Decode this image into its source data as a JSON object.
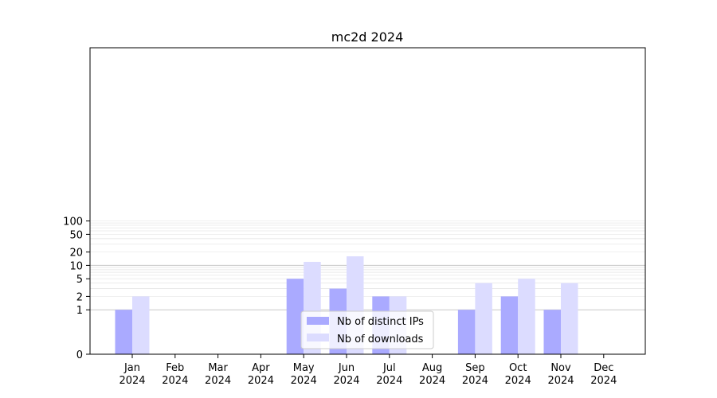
{
  "chart_data": {
    "type": "bar",
    "title": "mc2d 2024",
    "xlabel": "",
    "ylabel": "",
    "yscale": "symlog",
    "ylim": [
      0,
      100
    ],
    "yticks": [
      0,
      1,
      2,
      5,
      10,
      20,
      50,
      100
    ],
    "ytick_labels": [
      "0",
      "1",
      "2",
      "5",
      "10",
      "20",
      "50",
      "100"
    ],
    "categories": [
      [
        "Jan",
        "2024"
      ],
      [
        "Feb",
        "2024"
      ],
      [
        "Mar",
        "2024"
      ],
      [
        "Apr",
        "2024"
      ],
      [
        "May",
        "2024"
      ],
      [
        "Jun",
        "2024"
      ],
      [
        "Jul",
        "2024"
      ],
      [
        "Aug",
        "2024"
      ],
      [
        "Sep",
        "2024"
      ],
      [
        "Oct",
        "2024"
      ],
      [
        "Nov",
        "2024"
      ],
      [
        "Dec",
        "2024"
      ]
    ],
    "series": [
      {
        "name": "Nb of distinct IPs",
        "color": "#aaaaff",
        "values": [
          1,
          0,
          0,
          0,
          5,
          3,
          2,
          0,
          1,
          2,
          1,
          0
        ]
      },
      {
        "name": "Nb of downloads",
        "color": "#dcdcff",
        "values": [
          2,
          0,
          0,
          0,
          12,
          16,
          2,
          0,
          4,
          5,
          4,
          0
        ]
      }
    ],
    "grid": true,
    "legend": "lower-center"
  }
}
